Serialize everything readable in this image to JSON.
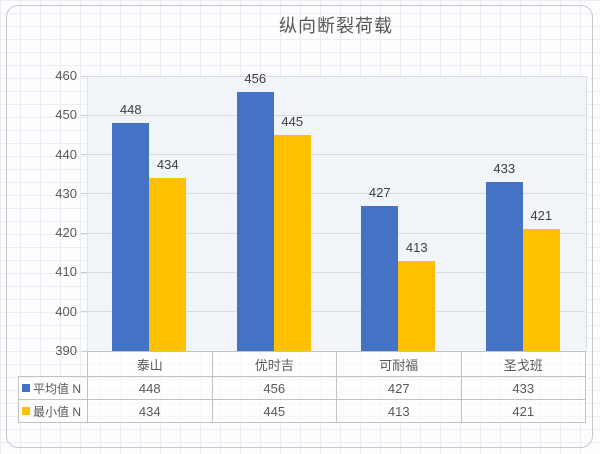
{
  "chart_data": {
    "type": "bar",
    "title": "纵向断裂荷载",
    "categories": [
      "泰山",
      "优时吉",
      "可耐福",
      "圣戈班"
    ],
    "series": [
      {
        "name": "平均值 N",
        "color": "#4472C4",
        "values": [
          448,
          456,
          427,
          433
        ]
      },
      {
        "name": "最小值 N",
        "color": "#FFC000",
        "values": [
          434,
          445,
          413,
          421
        ]
      }
    ],
    "ylim": [
      390,
      460
    ],
    "yticks": [
      390,
      400,
      410,
      420,
      430,
      440,
      450,
      460
    ],
    "grid": true,
    "data_labels": true,
    "legend_position": "data-table",
    "colors": {
      "plot_background": "#f1f4f8",
      "gridline": "#d8dbe0",
      "axis_text": "#595959",
      "data_label_text": "#404040",
      "table_border": "#bfc2c7"
    }
  }
}
